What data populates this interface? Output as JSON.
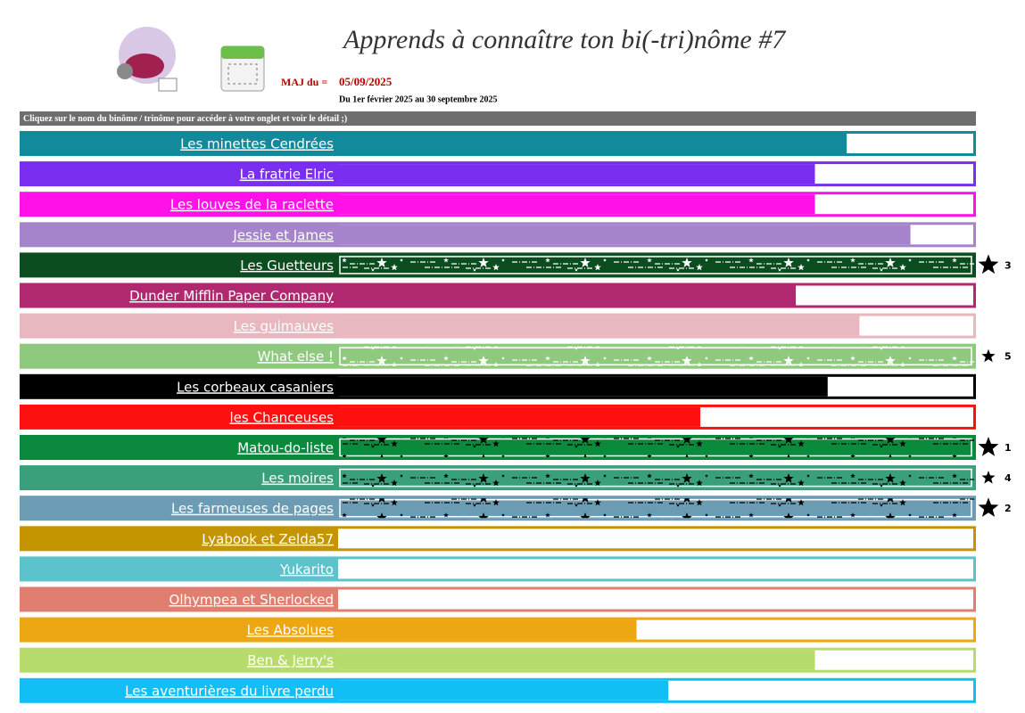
{
  "header": {
    "title": "Apprends à connaître ton bi(-tri)nôme #7",
    "update_label": "MAJ du =",
    "update_date": "05/09/2025",
    "period": "Du 1er février 2025 au 30 septembre 2025",
    "instruction": "Cliquez sur le nom du binôme / trinôme pour accéder à votre onglet et voir le détail ;)"
  },
  "rows": [
    {
      "name": "Les minettes Cendrées",
      "color": "#138a9c",
      "progress": 80
    },
    {
      "name": "La fratrie Elric",
      "color": "#7a2ef0",
      "progress": 75
    },
    {
      "name": "Les louves de la raclette",
      "color": "#ff11e8",
      "progress": 75
    },
    {
      "name": "Jessie et James",
      "color": "#a584cc",
      "progress": 90
    },
    {
      "name": "Les Guetteurs",
      "color": "#0b4d1e",
      "progress": 100,
      "pattern_color": "#ffffff",
      "rank": 3
    },
    {
      "name": "Dunder Mifflin Paper Company",
      "color": "#b0286f",
      "progress": 72
    },
    {
      "name": "Les guimauves",
      "color": "#e8b7bf",
      "progress": 82
    },
    {
      "name": "What else !",
      "color": "#8fc97e",
      "progress": 100,
      "pattern_color": "#ffffff",
      "rank": 5
    },
    {
      "name": "Les corbeaux casaniers",
      "color": "#000000",
      "progress": 77
    },
    {
      "name": "les Chanceuses",
      "color": "#ff1010",
      "progress": 57
    },
    {
      "name": "Matou-do-liste",
      "color": "#0b8a3e",
      "progress": 100,
      "pattern_color": "#000000",
      "rank": 1
    },
    {
      "name": "Les moires",
      "color": "#3aa07c",
      "progress": 100,
      "pattern_color": "#000000",
      "rank": 4
    },
    {
      "name": "Les farmeuses de pages",
      "color": "#6b9cb4",
      "progress": 100,
      "pattern_color": "#000000",
      "rank": 2
    },
    {
      "name": "Lyabook et Zelda57",
      "color": "#c49500",
      "progress": 0
    },
    {
      "name": "Yukarito",
      "color": "#5cc3cc",
      "progress": 0
    },
    {
      "name": "Olhympea et Sherlocked",
      "color": "#e07f70",
      "progress": 0
    },
    {
      "name": "Les Absolues",
      "color": "#eda712",
      "progress": 47
    },
    {
      "name": "Ben & Jerry's",
      "color": "#b8db6e",
      "progress": 75
    },
    {
      "name": "Les aventurières du livre perdu",
      "color": "#11bff5",
      "progress": 52
    }
  ]
}
